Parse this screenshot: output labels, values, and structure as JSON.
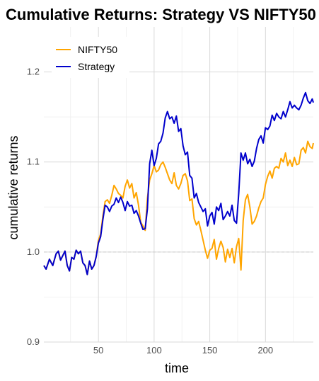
{
  "chart_data": {
    "type": "line",
    "title": "Cumulative Returns: Strategy VS NIFTY50",
    "xlabel": "time",
    "ylabel": "cumulative returns",
    "xlim": [
      1,
      243
    ],
    "ylim": [
      0.9,
      1.25
    ],
    "x_ticks": [
      50,
      100,
      150,
      200
    ],
    "y_ticks": [
      0.9,
      1.0,
      1.1,
      1.2
    ],
    "x_tick_labels": [
      "50",
      "100",
      "150",
      "200"
    ],
    "y_tick_labels": [
      "0.9",
      "1.0",
      "1.1",
      "1.2"
    ],
    "grid": true,
    "reference_line": 1.0,
    "legend": {
      "position": "top-left",
      "entries": [
        "NIFTY50",
        "Strategy"
      ]
    },
    "series": [
      {
        "name": "NIFTY50",
        "color": "#FFA500",
        "points": [
          [
            1,
            0.985
          ],
          [
            3,
            0.981
          ],
          [
            6,
            0.992
          ],
          [
            9,
            0.985
          ],
          [
            12,
            0.998
          ],
          [
            14,
            1.001
          ],
          [
            16,
            0.991
          ],
          [
            18,
            0.996
          ],
          [
            20,
            1.001
          ],
          [
            22,
            0.985
          ],
          [
            24,
            0.979
          ],
          [
            26,
            0.994
          ],
          [
            28,
            0.992
          ],
          [
            30,
            1.002
          ],
          [
            32,
            0.998
          ],
          [
            34,
            1.001
          ],
          [
            36,
            0.988
          ],
          [
            38,
            0.985
          ],
          [
            40,
            0.975
          ],
          [
            42,
            0.99
          ],
          [
            44,
            0.981
          ],
          [
            46,
            0.985
          ],
          [
            48,
            0.995
          ],
          [
            50,
            1.013
          ],
          [
            52,
            1.02
          ],
          [
            54,
            1.04
          ],
          [
            56,
            1.056
          ],
          [
            58,
            1.058
          ],
          [
            60,
            1.054
          ],
          [
            62,
            1.063
          ],
          [
            64,
            1.074
          ],
          [
            66,
            1.07
          ],
          [
            68,
            1.065
          ],
          [
            70,
            1.063
          ],
          [
            72,
            1.06
          ],
          [
            74,
            1.073
          ],
          [
            76,
            1.08
          ],
          [
            78,
            1.071
          ],
          [
            80,
            1.076
          ],
          [
            82,
            1.06
          ],
          [
            84,
            1.066
          ],
          [
            86,
            1.052
          ],
          [
            88,
            1.033
          ],
          [
            90,
            1.029
          ],
          [
            92,
            1.024
          ],
          [
            94,
            1.06
          ],
          [
            96,
            1.08
          ],
          [
            98,
            1.087
          ],
          [
            100,
            1.096
          ],
          [
            102,
            1.089
          ],
          [
            104,
            1.091
          ],
          [
            106,
            1.097
          ],
          [
            108,
            1.1
          ],
          [
            110,
            1.094
          ],
          [
            112,
            1.087
          ],
          [
            114,
            1.08
          ],
          [
            116,
            1.076
          ],
          [
            118,
            1.088
          ],
          [
            120,
            1.074
          ],
          [
            122,
            1.07
          ],
          [
            124,
            1.076
          ],
          [
            126,
            1.085
          ],
          [
            128,
            1.087
          ],
          [
            130,
            1.079
          ],
          [
            132,
            1.057
          ],
          [
            134,
            1.059
          ],
          [
            136,
            1.037
          ],
          [
            138,
            1.03
          ],
          [
            140,
            1.034
          ],
          [
            142,
            1.024
          ],
          [
            144,
            1.013
          ],
          [
            146,
            1.002
          ],
          [
            148,
            0.993
          ],
          [
            150,
            1.002
          ],
          [
            152,
            1.004
          ],
          [
            154,
            1.014
          ],
          [
            156,
            0.992
          ],
          [
            158,
            1.004
          ],
          [
            160,
            1.012
          ],
          [
            162,
            1.005
          ],
          [
            164,
            0.989
          ],
          [
            166,
            1.003
          ],
          [
            168,
            0.994
          ],
          [
            170,
            1.004
          ],
          [
            172,
            0.988
          ],
          [
            174,
            1.006
          ],
          [
            176,
            1.015
          ],
          [
            178,
            0.98
          ],
          [
            180,
            1.035
          ],
          [
            182,
            1.058
          ],
          [
            184,
            1.064
          ],
          [
            186,
            1.05
          ],
          [
            188,
            1.031
          ],
          [
            190,
            1.034
          ],
          [
            192,
            1.04
          ],
          [
            194,
            1.049
          ],
          [
            196,
            1.056
          ],
          [
            198,
            1.06
          ],
          [
            200,
            1.075
          ],
          [
            202,
            1.084
          ],
          [
            204,
            1.09
          ],
          [
            206,
            1.082
          ],
          [
            208,
            1.093
          ],
          [
            210,
            1.095
          ],
          [
            212,
            1.093
          ],
          [
            214,
            1.104
          ],
          [
            216,
            1.1
          ],
          [
            218,
            1.11
          ],
          [
            220,
            1.096
          ],
          [
            222,
            1.102
          ],
          [
            224,
            1.095
          ],
          [
            226,
            1.105
          ],
          [
            228,
            1.097
          ],
          [
            230,
            1.098
          ],
          [
            232,
            1.113
          ],
          [
            234,
            1.116
          ],
          [
            236,
            1.11
          ],
          [
            238,
            1.123
          ],
          [
            240,
            1.117
          ],
          [
            242,
            1.115
          ],
          [
            243,
            1.121
          ]
        ]
      },
      {
        "name": "Strategy",
        "color": "#0000CC",
        "points": [
          [
            1,
            0.985
          ],
          [
            3,
            0.981
          ],
          [
            6,
            0.992
          ],
          [
            9,
            0.985
          ],
          [
            12,
            0.998
          ],
          [
            14,
            1.001
          ],
          [
            16,
            0.991
          ],
          [
            18,
            0.996
          ],
          [
            20,
            1.001
          ],
          [
            22,
            0.985
          ],
          [
            24,
            0.979
          ],
          [
            26,
            0.994
          ],
          [
            28,
            0.992
          ],
          [
            30,
            1.002
          ],
          [
            32,
            0.998
          ],
          [
            34,
            1.001
          ],
          [
            36,
            0.988
          ],
          [
            38,
            0.985
          ],
          [
            40,
            0.975
          ],
          [
            42,
            0.99
          ],
          [
            44,
            0.981
          ],
          [
            46,
            0.985
          ],
          [
            48,
            0.995
          ],
          [
            50,
            1.01
          ],
          [
            52,
            1.017
          ],
          [
            54,
            1.036
          ],
          [
            56,
            1.052
          ],
          [
            58,
            1.05
          ],
          [
            60,
            1.045
          ],
          [
            62,
            1.051
          ],
          [
            64,
            1.053
          ],
          [
            66,
            1.06
          ],
          [
            68,
            1.055
          ],
          [
            70,
            1.061
          ],
          [
            72,
            1.055
          ],
          [
            74,
            1.046
          ],
          [
            76,
            1.056
          ],
          [
            78,
            1.051
          ],
          [
            80,
            1.052
          ],
          [
            82,
            1.043
          ],
          [
            84,
            1.046
          ],
          [
            86,
            1.04
          ],
          [
            88,
            1.032
          ],
          [
            90,
            1.025
          ],
          [
            92,
            1.026
          ],
          [
            94,
            1.048
          ],
          [
            96,
            1.098
          ],
          [
            98,
            1.113
          ],
          [
            100,
            1.096
          ],
          [
            102,
            1.104
          ],
          [
            104,
            1.12
          ],
          [
            106,
            1.123
          ],
          [
            108,
            1.132
          ],
          [
            110,
            1.149
          ],
          [
            112,
            1.156
          ],
          [
            114,
            1.148
          ],
          [
            116,
            1.15
          ],
          [
            118,
            1.143
          ],
          [
            120,
            1.151
          ],
          [
            122,
            1.134
          ],
          [
            124,
            1.137
          ],
          [
            126,
            1.118
          ],
          [
            128,
            1.108
          ],
          [
            130,
            1.111
          ],
          [
            132,
            1.085
          ],
          [
            134,
            1.082
          ],
          [
            136,
            1.06
          ],
          [
            138,
            1.065
          ],
          [
            140,
            1.055
          ],
          [
            142,
            1.05
          ],
          [
            144,
            1.045
          ],
          [
            146,
            1.048
          ],
          [
            148,
            1.029
          ],
          [
            150,
            1.04
          ],
          [
            152,
            1.044
          ],
          [
            154,
            1.031
          ],
          [
            156,
            1.05
          ],
          [
            158,
            1.046
          ],
          [
            160,
            1.054
          ],
          [
            162,
            1.036
          ],
          [
            164,
            1.04
          ],
          [
            166,
            1.045
          ],
          [
            168,
            1.04
          ],
          [
            170,
            1.052
          ],
          [
            172,
            1.035
          ],
          [
            174,
            1.032
          ],
          [
            176,
            1.065
          ],
          [
            178,
            1.11
          ],
          [
            180,
            1.102
          ],
          [
            182,
            1.11
          ],
          [
            184,
            1.098
          ],
          [
            186,
            1.103
          ],
          [
            188,
            1.095
          ],
          [
            190,
            1.101
          ],
          [
            192,
            1.115
          ],
          [
            194,
            1.125
          ],
          [
            196,
            1.129
          ],
          [
            198,
            1.121
          ],
          [
            200,
            1.138
          ],
          [
            202,
            1.136
          ],
          [
            204,
            1.14
          ],
          [
            206,
            1.152
          ],
          [
            208,
            1.146
          ],
          [
            210,
            1.154
          ],
          [
            212,
            1.15
          ],
          [
            214,
            1.148
          ],
          [
            216,
            1.156
          ],
          [
            218,
            1.15
          ],
          [
            220,
            1.158
          ],
          [
            222,
            1.167
          ],
          [
            224,
            1.16
          ],
          [
            226,
            1.163
          ],
          [
            228,
            1.16
          ],
          [
            230,
            1.158
          ],
          [
            232,
            1.163
          ],
          [
            234,
            1.171
          ],
          [
            236,
            1.177
          ],
          [
            238,
            1.168
          ],
          [
            240,
            1.165
          ],
          [
            242,
            1.17
          ],
          [
            243,
            1.166
          ]
        ]
      }
    ]
  }
}
